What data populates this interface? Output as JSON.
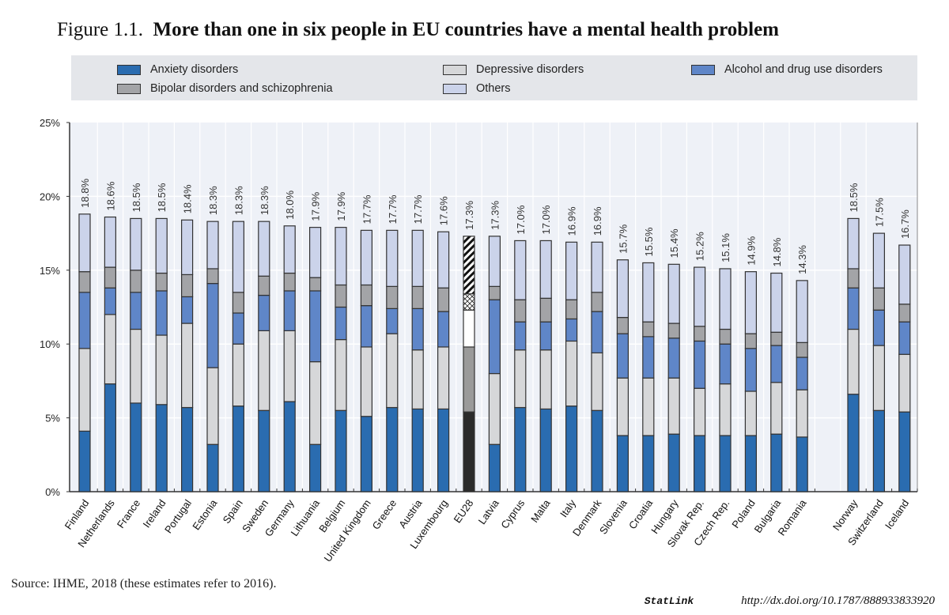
{
  "title_prefix": "Figure 1.1.",
  "title_main": "More than one in six people in EU countries have a mental health problem",
  "source": "Source: IHME, 2018 (these estimates refer to 2016).",
  "statlink_label": "StatLink",
  "statlink_url": "http://dx.doi.org/10.1787/888933833920",
  "chart_data": {
    "type": "bar",
    "stacked": true,
    "title": "More than one in six people in EU countries have a mental health problem",
    "ylabel": "",
    "xlabel": "",
    "ylim": [
      0,
      25
    ],
    "yticks": [
      "0%",
      "5%",
      "10%",
      "15%",
      "20%",
      "25%"
    ],
    "legend_position": "top",
    "categories": [
      "Finland",
      "Netherlands",
      "France",
      "Ireland",
      "Portugal",
      "Estonia",
      "Spain",
      "Sweden",
      "Germany",
      "Lithuania",
      "Belgium",
      "United Kingdom",
      "Greece",
      "Austria",
      "Luxembourg",
      "EU28",
      "Latvia",
      "Cyprus",
      "Malta",
      "Italy",
      "Denmark",
      "Slovenia",
      "Croatia",
      "Hungary",
      "Slovak Rep.",
      "Czech Rep.",
      "Poland",
      "Bulgaria",
      "Romania",
      "Norway",
      "Switzerland",
      "Iceland"
    ],
    "totals": [
      18.8,
      18.6,
      18.5,
      18.5,
      18.4,
      18.3,
      18.3,
      18.3,
      18.0,
      17.9,
      17.9,
      17.7,
      17.7,
      17.7,
      17.6,
      17.3,
      17.3,
      17.0,
      17.0,
      16.9,
      16.9,
      15.7,
      15.5,
      15.4,
      15.2,
      15.1,
      14.9,
      14.8,
      14.3,
      18.5,
      17.5,
      16.7
    ],
    "total_labels": [
      "18.8%",
      "18.6%",
      "18.5%",
      "18.5%",
      "18.4%",
      "18.3%",
      "18.3%",
      "18.3%",
      "18.0%",
      "17.9%",
      "17.9%",
      "17.7%",
      "17.7%",
      "17.7%",
      "17.6%",
      "17.3%",
      "17.3%",
      "17.0%",
      "17.0%",
      "16.9%",
      "16.9%",
      "15.7%",
      "15.5%",
      "15.4%",
      "15.2%",
      "15.1%",
      "14.9%",
      "14.8%",
      "14.3%",
      "18.5%",
      "17.5%",
      "16.7%"
    ],
    "series": [
      {
        "name": "Anxiety disorders",
        "color": "#2a6cb0",
        "values": [
          4.1,
          7.3,
          6.0,
          5.9,
          5.7,
          3.2,
          5.8,
          5.5,
          6.1,
          3.2,
          5.5,
          5.1,
          5.7,
          5.6,
          5.6,
          5.4,
          3.2,
          5.7,
          5.6,
          5.8,
          5.5,
          3.8,
          3.8,
          3.9,
          3.8,
          3.8,
          3.8,
          3.9,
          3.7,
          6.6,
          5.5,
          5.4
        ]
      },
      {
        "name": "Depressive disorders",
        "color": "#d6d7d9",
        "values": [
          5.6,
          4.7,
          5.0,
          4.7,
          5.7,
          5.2,
          4.2,
          5.4,
          4.8,
          5.6,
          4.8,
          4.7,
          5.0,
          4.0,
          4.2,
          4.4,
          4.8,
          3.9,
          4.0,
          4.4,
          3.9,
          3.9,
          3.9,
          3.8,
          3.2,
          3.5,
          3.0,
          3.5,
          3.2,
          4.4,
          4.4,
          3.9
        ]
      },
      {
        "name": "Alcohol and drug use disorders",
        "color": "#5f86c8",
        "values": [
          3.8,
          1.8,
          2.5,
          3.0,
          1.8,
          5.7,
          2.1,
          2.4,
          2.7,
          4.8,
          2.2,
          2.8,
          1.7,
          2.8,
          2.4,
          2.5,
          5.0,
          1.9,
          1.9,
          1.5,
          2.8,
          3.0,
          2.8,
          2.7,
          3.2,
          2.7,
          2.9,
          2.5,
          2.2,
          2.8,
          2.4,
          2.2
        ]
      },
      {
        "name": "Bipolar disorders and schizophrenia",
        "color": "#a3a4a7",
        "values": [
          1.4,
          1.4,
          1.5,
          1.2,
          1.5,
          1.0,
          1.4,
          1.3,
          1.2,
          0.9,
          1.5,
          1.4,
          1.5,
          1.5,
          1.6,
          1.1,
          0.9,
          1.5,
          1.6,
          1.3,
          1.3,
          1.1,
          1.0,
          1.0,
          1.0,
          1.0,
          1.0,
          0.9,
          1.0,
          1.3,
          1.5,
          1.2
        ]
      },
      {
        "name": "Others",
        "color": "#cbd3ea",
        "values": [
          3.9,
          3.4,
          3.5,
          3.7,
          3.7,
          3.2,
          4.8,
          3.7,
          3.2,
          3.4,
          3.9,
          3.7,
          3.8,
          3.8,
          3.8,
          3.9,
          3.4,
          4.0,
          3.9,
          3.9,
          3.4,
          3.9,
          4.0,
          4.0,
          4.0,
          4.1,
          4.2,
          4.0,
          4.2,
          3.4,
          3.7,
          4.0
        ]
      }
    ],
    "highlight_category": "EU28"
  }
}
